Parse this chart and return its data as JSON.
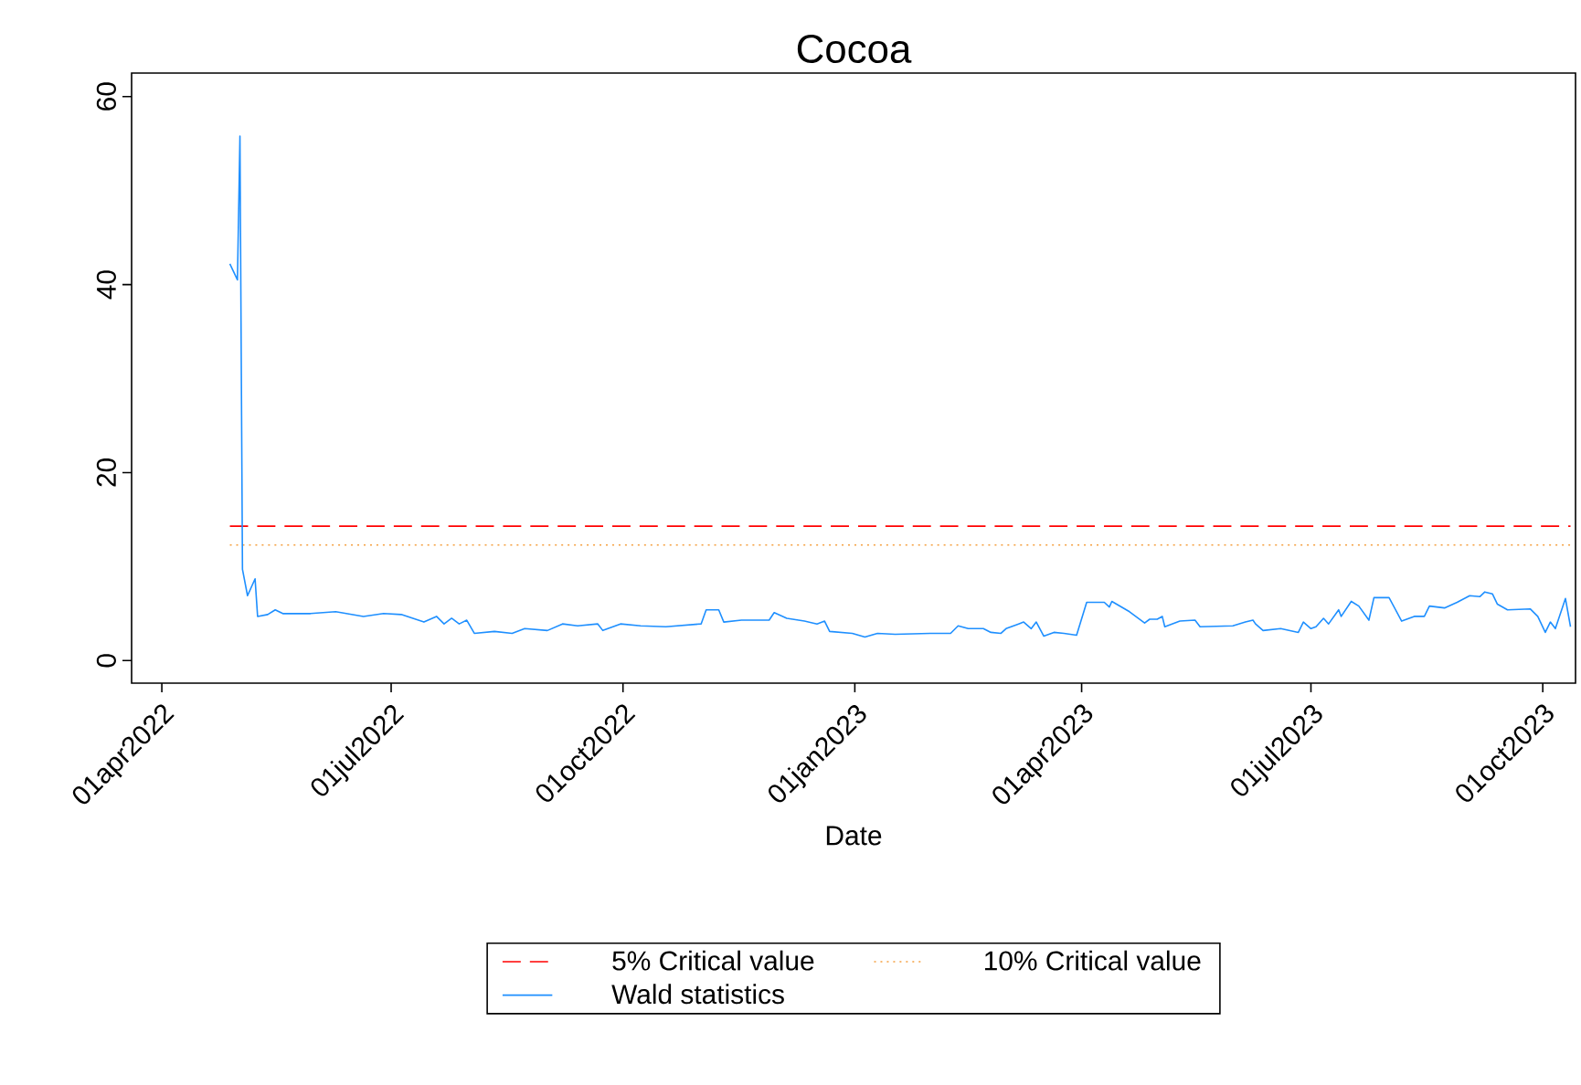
{
  "chart_data": {
    "type": "line",
    "title": "Cocoa",
    "xlabel": "Date",
    "x": [
      "2022-04-28",
      "2022-05-01",
      "2022-05-02",
      "2022-05-03",
      "2022-05-05",
      "2022-05-08",
      "2022-05-09",
      "2022-05-13",
      "2022-05-16",
      "2022-05-19",
      "2022-05-30",
      "2022-06-09",
      "2022-06-20",
      "2022-06-28",
      "2022-07-05",
      "2022-07-14",
      "2022-07-19",
      "2022-07-22",
      "2022-07-25",
      "2022-07-28",
      "2022-07-31",
      "2022-08-03",
      "2022-08-11",
      "2022-08-18",
      "2022-08-23",
      "2022-09-01",
      "2022-09-07",
      "2022-09-13",
      "2022-09-21",
      "2022-09-23",
      "2022-09-30",
      "2022-10-08",
      "2022-10-18",
      "2022-11-01",
      "2022-11-03",
      "2022-11-08",
      "2022-11-10",
      "2022-11-17",
      "2022-11-28",
      "2022-11-30",
      "2022-12-05",
      "2022-12-12",
      "2022-12-17",
      "2022-12-20",
      "2022-12-22",
      "2022-12-31",
      "2023-01-05",
      "2023-01-10",
      "2023-01-17",
      "2023-02-01",
      "2023-02-08",
      "2023-02-11",
      "2023-02-15",
      "2023-02-21",
      "2023-02-24",
      "2023-02-28",
      "2023-03-02",
      "2023-03-07",
      "2023-03-09",
      "2023-03-12",
      "2023-03-14",
      "2023-03-17",
      "2023-03-21",
      "2023-03-25",
      "2023-03-30",
      "2023-04-03",
      "2023-04-10",
      "2023-04-12",
      "2023-04-13",
      "2023-04-20",
      "2023-04-26",
      "2023-04-28",
      "2023-05-01",
      "2023-05-03",
      "2023-05-04",
      "2023-05-10",
      "2023-05-16",
      "2023-05-18",
      "2023-05-31",
      "2023-06-05",
      "2023-06-08",
      "2023-06-09",
      "2023-06-12",
      "2023-06-19",
      "2023-06-26",
      "2023-06-28",
      "2023-07-01",
      "2023-07-03",
      "2023-07-06",
      "2023-07-08",
      "2023-07-12",
      "2023-07-13",
      "2023-07-17",
      "2023-07-20",
      "2023-07-24",
      "2023-07-26",
      "2023-08-01",
      "2023-08-06",
      "2023-08-11",
      "2023-08-15",
      "2023-08-17",
      "2023-08-23",
      "2023-08-28",
      "2023-09-02",
      "2023-09-06",
      "2023-09-08",
      "2023-09-11",
      "2023-09-13",
      "2023-09-17",
      "2023-09-26",
      "2023-09-29",
      "2023-10-02",
      "2023-10-04",
      "2023-10-06",
      "2023-10-10",
      "2023-10-12"
    ],
    "series": [
      {
        "name": "Wald statistics",
        "color": "#1e8fff",
        "values": [
          42.2,
          40.5,
          55.8,
          9.7,
          6.9,
          8.7,
          4.7,
          4.9,
          5.4,
          5.0,
          5.0,
          5.2,
          4.7,
          5.0,
          4.9,
          4.1,
          4.7,
          3.9,
          4.5,
          3.9,
          4.3,
          2.9,
          3.1,
          2.9,
          3.4,
          3.2,
          3.9,
          3.7,
          3.9,
          3.2,
          3.9,
          3.7,
          3.6,
          3.9,
          5.4,
          5.4,
          4.1,
          4.3,
          4.3,
          5.1,
          4.5,
          4.2,
          3.9,
          4.2,
          3.1,
          2.9,
          2.5,
          2.9,
          2.8,
          2.9,
          2.9,
          3.7,
          3.4,
          3.4,
          3.0,
          2.9,
          3.4,
          3.9,
          4.1,
          3.4,
          4.1,
          2.6,
          3.0,
          2.9,
          2.7,
          6.2,
          6.2,
          5.7,
          6.3,
          5.2,
          4.0,
          4.4,
          4.4,
          4.7,
          3.6,
          4.2,
          4.3,
          3.6,
          3.7,
          4.1,
          4.3,
          3.9,
          3.2,
          3.4,
          3.0,
          4.1,
          3.4,
          3.6,
          4.5,
          3.9,
          5.4,
          4.7,
          6.3,
          5.8,
          4.3,
          6.7,
          6.7,
          4.2,
          4.7,
          4.7,
          5.8,
          5.6,
          6.2,
          6.9,
          6.8,
          7.3,
          7.1,
          6.0,
          5.4,
          5.5,
          4.7,
          3.0,
          4.1,
          3.4,
          6.6,
          3.6
        ]
      }
    ],
    "ref_lines": [
      {
        "axis": "y",
        "value": 14.3,
        "label": "5% Critical value",
        "color": "#ff0000",
        "line_style": "dashed"
      },
      {
        "axis": "y",
        "value": 12.3,
        "label": "10% Critical value",
        "color": "#f5a040",
        "line_style": "dotted"
      }
    ],
    "xlim": [
      "2022-03-20",
      "2023-10-14"
    ],
    "xticks": [
      {
        "value": "2022-04-01",
        "label": "01apr2022"
      },
      {
        "value": "2022-07-01",
        "label": "01jul2022"
      },
      {
        "value": "2022-10-01",
        "label": "01oct2022"
      },
      {
        "value": "2023-01-01",
        "label": "01jan2023"
      },
      {
        "value": "2023-04-01",
        "label": "01apr2023"
      },
      {
        "value": "2023-07-01",
        "label": "01jul2023"
      },
      {
        "value": "2023-10-01",
        "label": "01oct2023"
      }
    ],
    "ylim": [
      -2.4,
      62.5
    ],
    "yticks": [
      0,
      20,
      40,
      60
    ],
    "grid": false,
    "legend": "bottom",
    "marker": "none",
    "line_style": "solid"
  }
}
